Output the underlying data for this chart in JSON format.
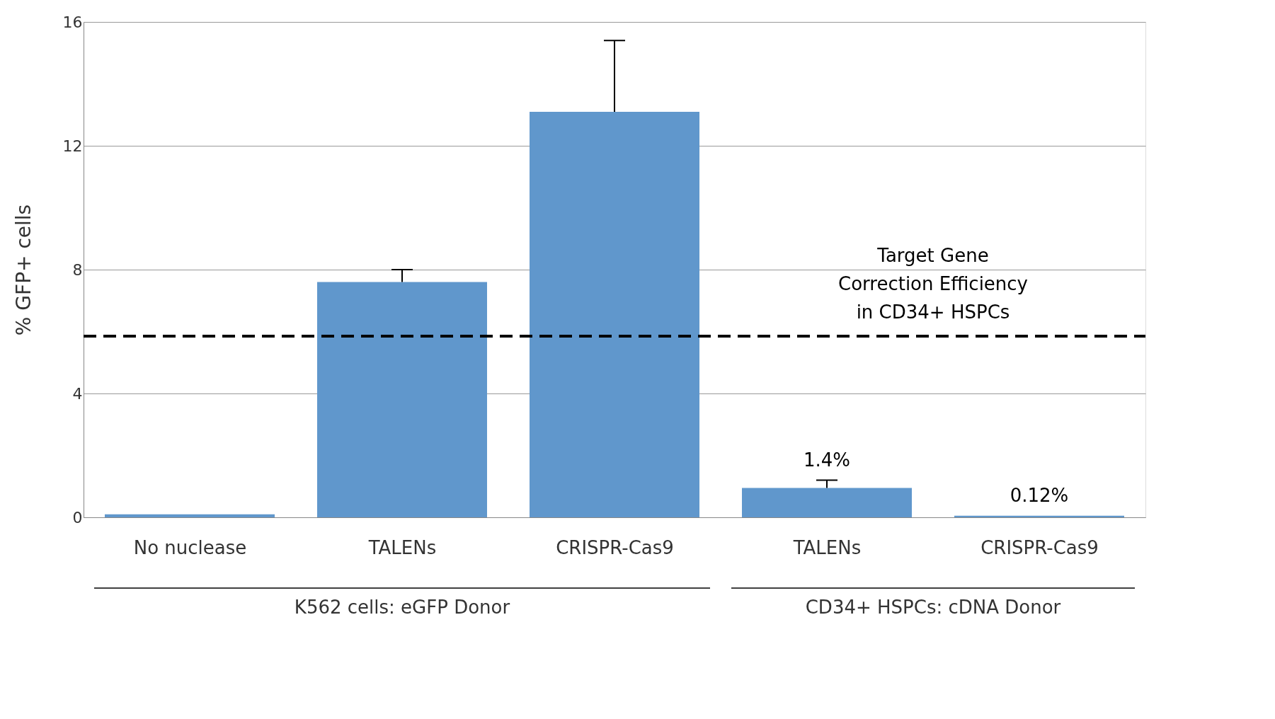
{
  "chart_data": {
    "type": "bar",
    "ylabel": "% GFP+  cells",
    "categories": [
      "No nuclease",
      "TALENs",
      "CRISPR-Cas9",
      "TALENs",
      "CRISPR-Cas9"
    ],
    "values": [
      0.1,
      7.6,
      13.1,
      0.95,
      0.05
    ],
    "errors": [
      null,
      0.4,
      2.3,
      0.25,
      null
    ],
    "color": "#6097cc",
    "ylim": [
      0,
      16
    ],
    "yticks": [
      0,
      4,
      8,
      12,
      16
    ],
    "grid": "y",
    "ref_lines": [
      {
        "axis": "y",
        "value": 5.85,
        "label": "Target Gene Correction Efficiency in CD34+ HSPCs",
        "color": "#000000",
        "line_style": "dashed"
      }
    ],
    "annotations": [
      "1.4%",
      "0.12%",
      "K562 cells:  eGFP Donor",
      "CD34+ HSPCs: cDNA Donor"
    ]
  }
}
